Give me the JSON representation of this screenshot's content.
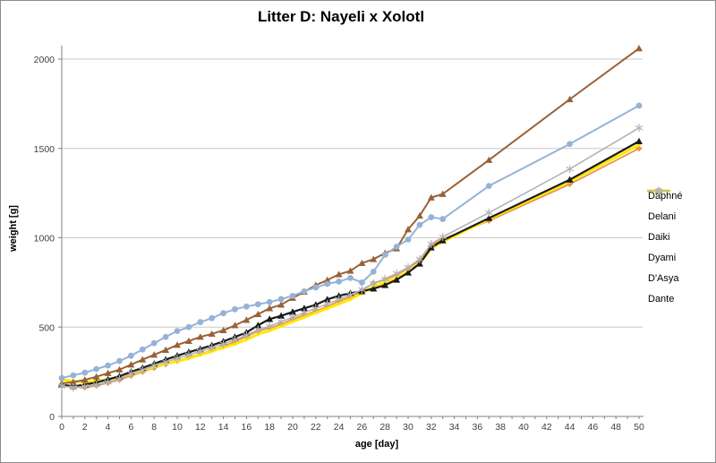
{
  "chart_data": {
    "type": "line",
    "title": "Litter D: Nayeli x Xolotl",
    "xlabel": "age [day]",
    "ylabel": "weight [g]",
    "xlim": [
      0,
      50
    ],
    "ylim": [
      0,
      2000
    ],
    "grid": "horizontal",
    "legend_position": "right",
    "x_ticks": [
      0,
      2,
      4,
      6,
      8,
      10,
      12,
      14,
      16,
      18,
      20,
      22,
      24,
      26,
      28,
      30,
      32,
      34,
      36,
      38,
      40,
      42,
      44,
      46,
      48,
      50
    ],
    "y_ticks": [
      0,
      500,
      1000,
      1500,
      2000
    ],
    "x": [
      0,
      1,
      2,
      3,
      4,
      5,
      6,
      7,
      8,
      9,
      10,
      11,
      12,
      13,
      14,
      15,
      16,
      17,
      18,
      19,
      20,
      21,
      22,
      23,
      24,
      25,
      26,
      27,
      28,
      29,
      30,
      31,
      32,
      33,
      37,
      44,
      50
    ],
    "series": [
      {
        "name": "Daphné",
        "color": "#1a1a1a",
        "marker": "triangle",
        "values": [
          178,
          168,
          178,
          190,
          207,
          225,
          250,
          272,
          295,
          318,
          340,
          360,
          378,
          398,
          420,
          445,
          470,
          510,
          545,
          563,
          585,
          605,
          625,
          655,
          675,
          690,
          700,
          715,
          735,
          765,
          805,
          855,
          945,
          985,
          1110,
          1325,
          1540
        ]
      },
      {
        "name": "Delani",
        "color": "#e6954e",
        "marker": "diamond",
        "values": [
          172,
          165,
          162,
          172,
          188,
          205,
          228,
          250,
          272,
          292,
          310,
          330,
          350,
          370,
          392,
          418,
          448,
          478,
          495,
          515,
          545,
          565,
          590,
          615,
          645,
          668,
          705,
          745,
          765,
          792,
          828,
          872,
          958,
          992,
          1095,
          1300,
          1500
        ]
      },
      {
        "name": "Daiki",
        "color": "#996136",
        "marker": "triangle",
        "values": [
          185,
          192,
          205,
          222,
          242,
          262,
          290,
          318,
          345,
          372,
          400,
          422,
          445,
          462,
          482,
          510,
          540,
          572,
          605,
          625,
          663,
          697,
          735,
          763,
          795,
          815,
          858,
          880,
          914,
          940,
          1047,
          1123,
          1225,
          1245,
          1435,
          1775,
          2060
        ]
      },
      {
        "name": "Dyami",
        "color": "#95b3d7",
        "marker": "circle",
        "values": [
          215,
          230,
          245,
          265,
          285,
          310,
          340,
          375,
          410,
          445,
          478,
          500,
          528,
          550,
          578,
          600,
          615,
          628,
          640,
          657,
          675,
          700,
          722,
          742,
          755,
          775,
          750,
          810,
          905,
          950,
          990,
          1072,
          1115,
          1105,
          1290,
          1525,
          1740
        ]
      },
      {
        "name": "D'Asya",
        "color": "#ffe800",
        "marker": "diamond-small",
        "values": [
          205,
          198,
          192,
          198,
          208,
          220,
          238,
          258,
          278,
          295,
          308,
          325,
          345,
          365,
          385,
          405,
          430,
          460,
          480,
          505,
          530,
          555,
          580,
          605,
          630,
          655,
          690,
          725,
          750,
          775,
          810,
          855,
          940,
          978,
          1105,
          1315,
          1520
        ]
      },
      {
        "name": "Dante",
        "color": "#b3b3b3",
        "marker": "asterisk",
        "values": [
          170,
          162,
          168,
          178,
          192,
          210,
          240,
          260,
          285,
          305,
          325,
          345,
          365,
          385,
          405,
          430,
          455,
          485,
          505,
          530,
          555,
          580,
          605,
          630,
          655,
          680,
          710,
          745,
          770,
          800,
          835,
          880,
          965,
          1005,
          1140,
          1385,
          1615
        ]
      }
    ]
  },
  "colors": {
    "axis": "#808080",
    "gridline": "#c9c9c9",
    "tick_label": "#3f3f3f"
  }
}
